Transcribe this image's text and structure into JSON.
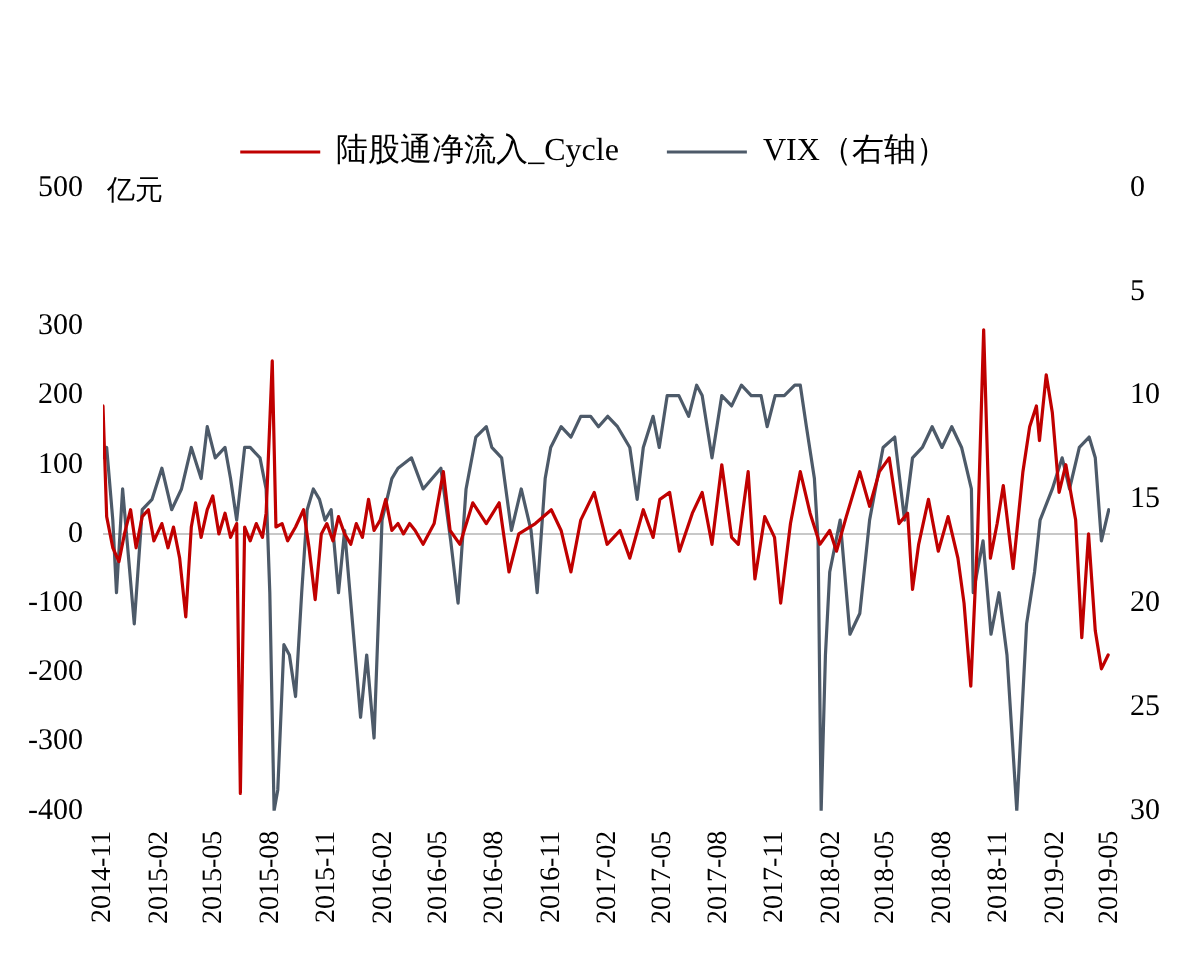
{
  "chart_data": {
    "type": "line",
    "ylabel": "亿元",
    "legend": "top",
    "xlim": [
      "2014-11",
      "2019-05"
    ],
    "xticks": [
      "2014-11",
      "2015-02",
      "2015-05",
      "2015-08",
      "2015-11",
      "2016-02",
      "2016-05",
      "2016-08",
      "2016-11",
      "2017-02",
      "2017-05",
      "2017-08",
      "2017-11",
      "2018-02",
      "2018-05",
      "2018-08",
      "2018-11",
      "2019-02",
      "2019-05"
    ],
    "ylim": [
      -400,
      500
    ],
    "yticks": [
      -400,
      -300,
      -200,
      -100,
      0,
      100,
      200,
      300,
      500
    ],
    "y2lim": [
      30,
      0
    ],
    "y2ticks": [
      0,
      5,
      10,
      15,
      20,
      25,
      30
    ],
    "ref_lines": [
      {
        "axis": "y",
        "value": 0,
        "color": "#c8c8c8"
      }
    ],
    "series": [
      {
        "name": "陆股通净流入_Cycle",
        "color": "#c00000",
        "x": [
          "2014-11-01",
          "2014-11-07",
          "2014-11-17",
          "2014-11-27",
          "2014-12-06",
          "2014-12-16",
          "2014-12-25",
          "2015-01-04",
          "2015-01-14",
          "2015-01-23",
          "2015-02-05",
          "2015-02-15",
          "2015-02-24",
          "2015-03-06",
          "2015-03-16",
          "2015-03-25",
          "2015-04-01",
          "2015-04-10",
          "2015-04-20",
          "2015-04-29",
          "2015-05-09",
          "2015-05-19",
          "2015-05-28",
          "2015-06-07",
          "2015-06-13",
          "2015-06-20",
          "2015-06-29",
          "2015-07-09",
          "2015-07-19",
          "2015-07-25",
          "2015-08-04",
          "2015-08-10",
          "2015-08-20",
          "2015-08-29",
          "2015-09-11",
          "2015-09-24",
          "2015-10-03",
          "2015-10-13",
          "2015-10-23",
          "2015-11-01",
          "2015-11-11",
          "2015-11-20",
          "2015-11-30",
          "2015-12-10",
          "2015-12-19",
          "2015-12-29",
          "2016-01-08",
          "2016-01-17",
          "2016-01-27",
          "2016-02-05",
          "2016-02-15",
          "2016-02-25",
          "2016-03-05",
          "2016-03-15",
          "2016-03-24",
          "2016-04-06",
          "2016-04-24",
          "2016-05-09",
          "2016-05-20",
          "2016-06-05",
          "2016-06-26",
          "2016-07-18",
          "2016-08-08",
          "2016-08-24",
          "2016-09-09",
          "2016-10-06",
          "2016-11-01",
          "2016-11-17",
          "2016-12-03",
          "2016-12-19",
          "2017-01-10",
          "2017-01-31",
          "2017-02-21",
          "2017-03-09",
          "2017-03-31",
          "2017-04-16",
          "2017-04-27",
          "2017-05-13",
          "2017-05-29",
          "2017-06-19",
          "2017-07-05",
          "2017-07-21",
          "2017-08-06",
          "2017-08-22",
          "2017-09-02",
          "2017-09-18",
          "2017-09-29",
          "2017-10-15",
          "2017-10-31",
          "2017-11-10",
          "2017-11-26",
          "2017-12-12",
          "2017-12-28",
          "2018-01-13",
          "2018-01-29",
          "2018-02-09",
          "2018-02-25",
          "2018-03-19",
          "2018-04-04",
          "2018-04-20",
          "2018-05-06",
          "2018-05-22",
          "2018-06-05",
          "2018-06-13",
          "2018-06-23",
          "2018-07-09",
          "2018-07-25",
          "2018-08-10",
          "2018-08-26",
          "2018-09-05",
          "2018-09-16",
          "2018-09-27",
          "2018-10-07",
          "2018-10-18",
          "2018-10-29",
          "2018-11-08",
          "2018-11-24",
          "2018-12-10",
          "2018-12-21",
          "2019-01-01",
          "2019-01-06",
          "2019-01-17",
          "2019-01-27",
          "2019-02-07",
          "2019-02-18",
          "2019-03-06",
          "2019-03-16",
          "2019-03-27",
          "2019-04-07",
          "2019-04-17",
          "2019-04-28"
        ],
        "values": [
          185,
          25,
          -20,
          -40,
          0,
          35,
          -20,
          25,
          35,
          -10,
          15,
          -20,
          10,
          -35,
          -120,
          10,
          45,
          -5,
          35,
          55,
          0,
          30,
          -5,
          15,
          -375,
          10,
          -10,
          15,
          -5,
          30,
          250,
          10,
          15,
          -10,
          10,
          35,
          -20,
          -95,
          0,
          15,
          -10,
          25,
          0,
          -15,
          15,
          -5,
          50,
          5,
          20,
          50,
          5,
          15,
          0,
          15,
          5,
          -15,
          15,
          90,
          5,
          -15,
          45,
          15,
          45,
          -55,
          0,
          15,
          35,
          5,
          -55,
          20,
          60,
          -15,
          5,
          -35,
          35,
          -5,
          50,
          60,
          -25,
          30,
          60,
          -15,
          100,
          -5,
          -15,
          90,
          -65,
          25,
          -5,
          -100,
          15,
          90,
          30,
          -15,
          5,
          -25,
          25,
          90,
          40,
          90,
          110,
          15,
          30,
          -80,
          -15,
          50,
          -25,
          25,
          -35,
          -100,
          -220,
          -5,
          295,
          -35,
          15,
          70,
          -50,
          90,
          155,
          185,
          135,
          230,
          175,
          60,
          100,
          20,
          -150,
          0,
          -140,
          -195,
          -175
        ]
      },
      {
        "name": "VIX（右轴）",
        "color": "#4d5a69",
        "axis": "y2",
        "x": [
          "2014-11-01",
          "2014-11-07",
          "2014-11-17",
          "2014-11-23",
          "2014-12-03",
          "2014-12-22",
          "2015-01-04",
          "2015-01-20",
          "2015-02-05",
          "2015-02-21",
          "2015-03-09",
          "2015-03-25",
          "2015-04-10",
          "2015-04-20",
          "2015-05-03",
          "2015-05-19",
          "2015-05-28",
          "2015-06-07",
          "2015-06-20",
          "2015-06-29",
          "2015-07-15",
          "2015-07-25",
          "2015-07-31",
          "2015-08-07",
          "2015-08-13",
          "2015-08-23",
          "2015-09-01",
          "2015-09-11",
          "2015-09-21",
          "2015-09-30",
          "2015-10-10",
          "2015-10-20",
          "2015-10-29",
          "2015-11-08",
          "2015-11-20",
          "2015-11-30",
          "2015-12-13",
          "2015-12-26",
          "2016-01-05",
          "2016-01-17",
          "2016-01-30",
          "2016-02-15",
          "2016-02-25",
          "2016-03-18",
          "2016-04-06",
          "2016-05-05",
          "2016-05-21",
          "2016-06-02",
          "2016-06-15",
          "2016-07-01",
          "2016-07-18",
          "2016-07-27",
          "2016-08-12",
          "2016-08-28",
          "2016-09-13",
          "2016-09-29",
          "2016-10-09",
          "2016-10-22",
          "2016-10-31",
          "2016-11-17",
          "2016-12-03",
          "2016-12-19",
          "2017-01-04",
          "2017-01-17",
          "2017-02-01",
          "2017-02-17",
          "2017-03-09",
          "2017-03-21",
          "2017-03-31",
          "2017-04-16",
          "2017-04-26",
          "2017-05-09",
          "2017-05-28",
          "2017-06-13",
          "2017-06-26",
          "2017-07-05",
          "2017-07-21",
          "2017-08-06",
          "2017-08-22",
          "2017-09-07",
          "2017-09-23",
          "2017-10-09",
          "2017-10-19",
          "2017-11-01",
          "2017-11-16",
          "2017-12-03",
          "2017-12-12",
          "2017-12-22",
          "2018-01-04",
          "2018-01-10",
          "2018-01-15",
          "2018-01-22",
          "2018-01-29",
          "2018-02-15",
          "2018-03-03",
          "2018-03-19",
          "2018-04-04",
          "2018-04-26",
          "2018-05-15",
          "2018-05-31",
          "2018-06-13",
          "2018-06-29",
          "2018-07-15",
          "2018-07-31",
          "2018-08-16",
          "2018-09-01",
          "2018-09-17",
          "2018-09-20",
          "2018-10-06",
          "2018-10-19",
          "2018-11-01",
          "2018-11-14",
          "2018-11-30",
          "2018-12-16",
          "2018-12-29",
          "2019-01-07",
          "2019-01-27",
          "2019-02-12",
          "2019-02-24",
          "2019-03-12",
          "2019-03-28",
          "2019-04-07",
          "2019-04-17",
          "2019-04-29"
        ],
        "values": [
          13,
          12.5,
          16,
          19.5,
          14.5,
          21,
          15.5,
          15,
          13.5,
          15.5,
          14.5,
          12.5,
          14,
          11.5,
          13,
          12.5,
          14,
          16,
          12.5,
          12.5,
          13,
          14.5,
          19.5,
          30,
          29,
          22,
          22.5,
          24.5,
          19.5,
          15.5,
          14.5,
          15,
          16,
          15.5,
          19.5,
          16.5,
          21,
          25.5,
          22.5,
          26.5,
          16,
          14,
          13.5,
          13,
          14.5,
          13.5,
          17,
          20,
          14.5,
          12,
          11.5,
          12.5,
          13,
          16.5,
          14.5,
          16.5,
          19.5,
          14,
          12.5,
          11.5,
          12,
          11,
          11,
          11.5,
          11,
          11.5,
          12.5,
          15,
          12.5,
          11,
          12.5,
          10,
          10,
          11,
          9.5,
          10,
          13,
          10,
          10.5,
          9.5,
          10,
          10,
          11.5,
          10,
          10,
          9.5,
          9.5,
          11.5,
          14,
          17,
          30,
          22.5,
          18.5,
          16,
          21.5,
          20.5,
          16,
          12.5,
          12,
          16,
          13,
          12.5,
          11.5,
          12.5,
          11.5,
          12.5,
          14.5,
          19.5,
          17,
          21.5,
          19.5,
          22.5,
          30,
          21,
          18.5,
          16,
          14.5,
          13,
          14.5,
          12.5,
          12,
          13,
          17,
          15.5
        ]
      }
    ]
  }
}
